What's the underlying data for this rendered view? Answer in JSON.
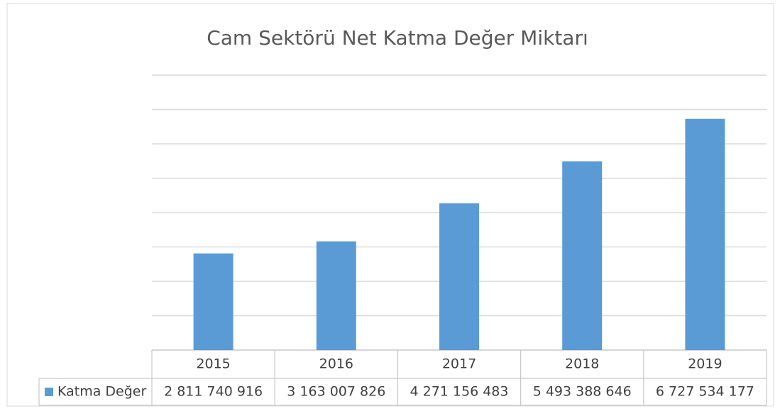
{
  "chart_data": {
    "type": "bar",
    "title": "Cam Sektörü Net Katma Değer Miktarı",
    "categories": [
      "2015",
      "2016",
      "2017",
      "2018",
      "2019"
    ],
    "series": [
      {
        "name": "Katma Değer",
        "color": "#5b9bd5",
        "values": [
          2811740916,
          3163007826,
          4271156483,
          5493388646,
          6727534177
        ],
        "value_labels": [
          "2 811 740 916",
          "3 163 007 826",
          "4 271 156 483",
          "5 493 388 646",
          "6 727 534 177"
        ]
      }
    ],
    "ylim": [
      0,
      8000000000
    ],
    "yticks": [
      0,
      1000000000,
      2000000000,
      3000000000,
      4000000000,
      5000000000,
      6000000000,
      7000000000,
      8000000000
    ],
    "grid": true
  }
}
